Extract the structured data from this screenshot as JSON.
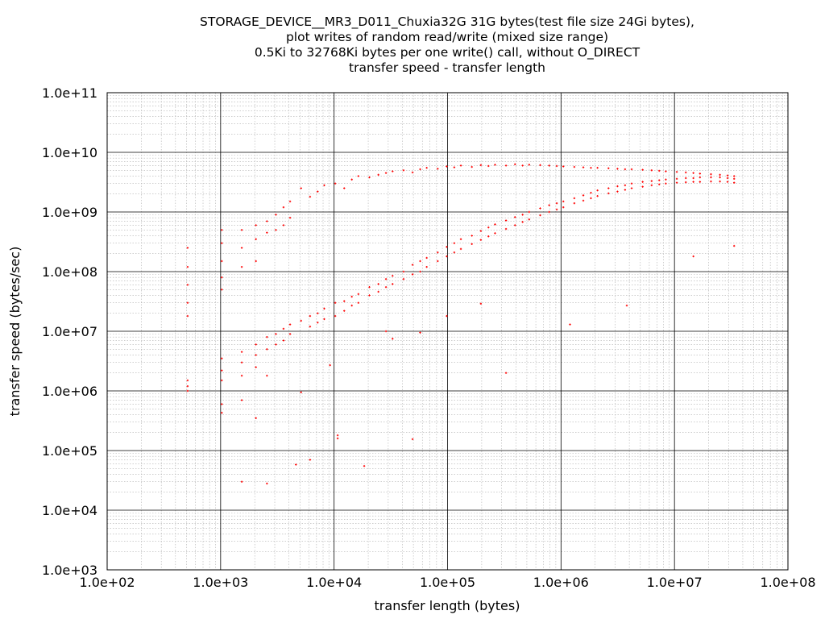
{
  "chart_data": {
    "type": "scatter",
    "title_lines": [
      "STORAGE_DEVICE__MR3_D011_Chuxia32G 31G bytes(test file size 24Gi bytes),",
      "plot writes of random read/write (mixed size range)",
      "0.5Ki to 32768Ki bytes per one write() call, without O_DIRECT",
      "transfer speed - transfer length"
    ],
    "xlabel": "transfer length (bytes)",
    "ylabel": "transfer speed (bytes/sec)",
    "xscale": "log",
    "yscale": "log",
    "xlim": [
      100,
      100000000
    ],
    "ylim": [
      1000,
      100000000000
    ],
    "x_ticks": [
      "1.0e+02",
      "1.0e+03",
      "1.0e+04",
      "1.0e+05",
      "1.0e+06",
      "1.0e+07",
      "1.0e+08"
    ],
    "y_ticks": [
      "1.0e+03",
      "1.0e+04",
      "1.0e+05",
      "1.0e+06",
      "1.0e+07",
      "1.0e+08",
      "1.0e+09",
      "1.0e+10",
      "1.0e+11"
    ],
    "grid": true,
    "marker_color": "#ff0000",
    "series": [
      {
        "points": [
          [
            512,
            250000000
          ],
          [
            512,
            120000000
          ],
          [
            512,
            60000000
          ],
          [
            512,
            30000000
          ],
          [
            512,
            18000000
          ],
          [
            512,
            1500000
          ],
          [
            512,
            1200000
          ],
          [
            512,
            1000000
          ],
          [
            1024,
            500000000
          ],
          [
            1024,
            300000000
          ],
          [
            1024,
            150000000
          ],
          [
            1024,
            80000000
          ],
          [
            1024,
            50000000
          ],
          [
            1024,
            3500000
          ],
          [
            1024,
            2200000
          ],
          [
            1024,
            1500000
          ],
          [
            1024,
            600000
          ],
          [
            1024,
            430000
          ],
          [
            1536,
            500000000
          ],
          [
            1536,
            250000000
          ],
          [
            1536,
            120000000
          ],
          [
            1536,
            4500000
          ],
          [
            1536,
            3000000
          ],
          [
            1536,
            1800000
          ],
          [
            1536,
            700000
          ],
          [
            1536,
            30000
          ],
          [
            2048,
            600000000
          ],
          [
            2048,
            350000000
          ],
          [
            2048,
            150000000
          ],
          [
            2048,
            6000000
          ],
          [
            2048,
            4000000
          ],
          [
            2048,
            2500000
          ],
          [
            2048,
            350000
          ],
          [
            2560,
            700000000
          ],
          [
            2560,
            450000000
          ],
          [
            2560,
            8000000
          ],
          [
            2560,
            5000000
          ],
          [
            2560,
            1800000
          ],
          [
            2560,
            28000
          ],
          [
            3072,
            900000000
          ],
          [
            3072,
            500000000
          ],
          [
            3072,
            9000000
          ],
          [
            3072,
            6000000
          ],
          [
            3584,
            1200000000
          ],
          [
            3584,
            600000000
          ],
          [
            3584,
            11000000
          ],
          [
            3584,
            7000000
          ],
          [
            4096,
            1500000000
          ],
          [
            4096,
            800000000
          ],
          [
            4096,
            13000000
          ],
          [
            4096,
            9000000
          ],
          [
            4608,
            58000
          ],
          [
            5120,
            2500000000
          ],
          [
            5120,
            15000000
          ],
          [
            5120,
            950000
          ],
          [
            6144,
            1800000000
          ],
          [
            6144,
            18000000
          ],
          [
            6144,
            12000000
          ],
          [
            6144,
            70000
          ],
          [
            7168,
            2200000000
          ],
          [
            7168,
            20000000
          ],
          [
            7168,
            14000000
          ],
          [
            8192,
            2800000000
          ],
          [
            8192,
            24000000
          ],
          [
            8192,
            16000000
          ],
          [
            9216,
            2700000
          ],
          [
            10240,
            3000000000
          ],
          [
            10240,
            30000000
          ],
          [
            10240,
            18000000
          ],
          [
            10752,
            180000
          ],
          [
            10752,
            160000
          ],
          [
            12288,
            2500000000
          ],
          [
            12288,
            32000000
          ],
          [
            12288,
            22000000
          ],
          [
            14336,
            3500000000
          ],
          [
            14336,
            38000000
          ],
          [
            14336,
            27000000
          ],
          [
            16384,
            4000000000
          ],
          [
            16384,
            42000000
          ],
          [
            16384,
            30000000
          ],
          [
            18432,
            55000
          ],
          [
            20480,
            3800000000
          ],
          [
            20480,
            55000000
          ],
          [
            20480,
            40000000
          ],
          [
            24576,
            4200000000
          ],
          [
            24576,
            62000000
          ],
          [
            24576,
            46000000
          ],
          [
            28672,
            4500000000
          ],
          [
            28672,
            75000000
          ],
          [
            28672,
            55000000
          ],
          [
            28672,
            10000000
          ],
          [
            32768,
            4800000000
          ],
          [
            32768,
            85000000
          ],
          [
            32768,
            62000000
          ],
          [
            32768,
            7500000
          ],
          [
            40960,
            5000000000
          ],
          [
            40960,
            100000000
          ],
          [
            40960,
            75000000
          ],
          [
            49152,
            4600000000
          ],
          [
            49152,
            130000000
          ],
          [
            49152,
            90000000
          ],
          [
            49152,
            155000
          ],
          [
            57344,
            5200000000
          ],
          [
            57344,
            150000000
          ],
          [
            57344,
            100000000
          ],
          [
            57344,
            9500000
          ],
          [
            65536,
            5500000000
          ],
          [
            65536,
            170000000
          ],
          [
            65536,
            120000000
          ],
          [
            81920,
            5300000000
          ],
          [
            81920,
            210000000
          ],
          [
            81920,
            150000000
          ],
          [
            98304,
            5800000000
          ],
          [
            98304,
            260000000
          ],
          [
            98304,
            180000000
          ],
          [
            98304,
            18000000
          ],
          [
            114688,
            5600000000
          ],
          [
            114688,
            300000000
          ],
          [
            114688,
            210000000
          ],
          [
            131072,
            6000000000
          ],
          [
            131072,
            350000000
          ],
          [
            131072,
            240000000
          ],
          [
            163840,
            5700000000
          ],
          [
            163840,
            400000000
          ],
          [
            163840,
            290000000
          ],
          [
            196608,
            6100000000
          ],
          [
            196608,
            480000000
          ],
          [
            196608,
            340000000
          ],
          [
            196608,
            29000000
          ],
          [
            229376,
            5900000000
          ],
          [
            229376,
            550000000
          ],
          [
            229376,
            390000000
          ],
          [
            262144,
            6200000000
          ],
          [
            262144,
            620000000
          ],
          [
            262144,
            440000000
          ],
          [
            327680,
            6000000000
          ],
          [
            327680,
            720000000
          ],
          [
            327680,
            520000000
          ],
          [
            327680,
            2000000
          ],
          [
            393216,
            6300000000
          ],
          [
            393216,
            820000000
          ],
          [
            393216,
            600000000
          ],
          [
            458752,
            6000000000
          ],
          [
            458752,
            900000000
          ],
          [
            458752,
            680000000
          ],
          [
            524288,
            6200000000
          ],
          [
            524288,
            1000000000
          ],
          [
            524288,
            750000000
          ],
          [
            655360,
            6100000000
          ],
          [
            655360,
            1150000000
          ],
          [
            655360,
            880000000
          ],
          [
            786432,
            6000000000
          ],
          [
            786432,
            1300000000
          ],
          [
            786432,
            1000000000
          ],
          [
            917504,
            5900000000
          ],
          [
            917504,
            1400000000
          ],
          [
            917504,
            1100000000
          ],
          [
            1048576,
            5800000000
          ],
          [
            1048576,
            1500000000
          ],
          [
            1048576,
            1200000000
          ],
          [
            1200000,
            13000000
          ],
          [
            1310720,
            5700000000
          ],
          [
            1310720,
            1700000000
          ],
          [
            1310720,
            1400000000
          ],
          [
            1572864,
            5600000000
          ],
          [
            1572864,
            1900000000
          ],
          [
            1572864,
            1550000000
          ],
          [
            1835008,
            5500000000
          ],
          [
            1835008,
            2100000000
          ],
          [
            1835008,
            1700000000
          ],
          [
            2097152,
            5500000000
          ],
          [
            2097152,
            2300000000
          ],
          [
            2097152,
            1850000000
          ],
          [
            2621440,
            5400000000
          ],
          [
            2621440,
            2500000000
          ],
          [
            2621440,
            2050000000
          ],
          [
            3145728,
            5300000000
          ],
          [
            3145728,
            2700000000
          ],
          [
            3145728,
            2200000000
          ],
          [
            3670016,
            5200000000
          ],
          [
            3670016,
            2800000000
          ],
          [
            3670016,
            2350000000
          ],
          [
            3800000,
            27000000
          ],
          [
            4194304,
            5200000000
          ],
          [
            4194304,
            3000000000
          ],
          [
            4194304,
            2500000000
          ],
          [
            5242880,
            5100000000
          ],
          [
            5242880,
            3200000000
          ],
          [
            5242880,
            2650000000
          ],
          [
            6291456,
            5000000000
          ],
          [
            6291456,
            3300000000
          ],
          [
            6291456,
            2800000000
          ],
          [
            7340032,
            4900000000
          ],
          [
            7340032,
            3400000000
          ],
          [
            7340032,
            2900000000
          ],
          [
            8388608,
            4800000000
          ],
          [
            8388608,
            3500000000
          ],
          [
            8388608,
            3000000000
          ],
          [
            10485760,
            4700000000
          ],
          [
            10485760,
            3600000000
          ],
          [
            10485760,
            3100000000
          ],
          [
            12582912,
            4600000000
          ],
          [
            12582912,
            3700000000
          ],
          [
            12582912,
            3150000000
          ],
          [
            14680064,
            4500000000
          ],
          [
            14680064,
            3700000000
          ],
          [
            14680064,
            3200000000
          ],
          [
            14680064,
            180000000
          ],
          [
            16777216,
            4400000000
          ],
          [
            16777216,
            3800000000
          ],
          [
            16777216,
            3200000000
          ],
          [
            20971520,
            4300000000
          ],
          [
            20971520,
            3800000000
          ],
          [
            20971520,
            3250000000
          ],
          [
            25165824,
            4200000000
          ],
          [
            25165824,
            3800000000
          ],
          [
            25165824,
            3250000000
          ],
          [
            29360128,
            4100000000
          ],
          [
            29360128,
            3700000000
          ],
          [
            29360128,
            3200000000
          ],
          [
            33554432,
            4000000000
          ],
          [
            33554432,
            3600000000
          ],
          [
            33554432,
            3100000000
          ],
          [
            33554432,
            270000000
          ]
        ]
      }
    ]
  }
}
